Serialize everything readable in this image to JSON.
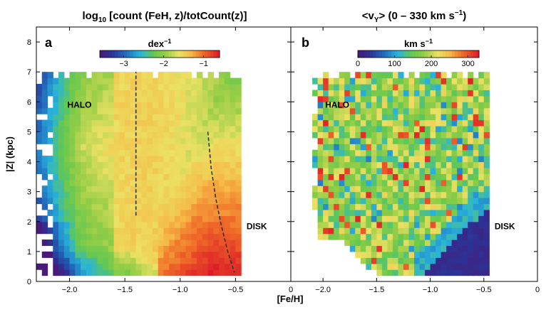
{
  "figure": {
    "xlabel": "[Fe/H]",
    "ylabel": "|Z| (kpc)"
  },
  "chart_data": [
    {
      "type": "heatmap",
      "panel_letter": "a",
      "title_prefix": "log",
      "title_sub": "10",
      "title_rest": " [count (FeH, z)/totCount(z)]",
      "xlim": [
        -2.3,
        0.0
      ],
      "ylim": [
        0,
        8.5
      ],
      "x_ticks": [
        -2.0,
        -1.5,
        -1.0,
        -0.5,
        0
      ],
      "x_tick_labels": [
        "−2.0",
        "−1.5",
        "−1.0",
        "−0.5",
        "0"
      ],
      "y_ticks": [
        0,
        1,
        2,
        3,
        4,
        5,
        6,
        7,
        8
      ],
      "y_tick_labels": [
        "0",
        "1",
        "2",
        "3",
        "4",
        "5",
        "6",
        "7",
        "8"
      ],
      "annotations": [
        {
          "text": "HALO",
          "x": -2.02,
          "y": 5.8
        },
        {
          "text": "DISK",
          "x": -0.4,
          "y": 1.75
        }
      ],
      "colorbar": {
        "label": "dex",
        "label_sup": "−1",
        "min": -3.6,
        "max": -0.6,
        "ticks": [
          -3,
          -2,
          -1
        ],
        "tick_labels": [
          "−3",
          "−2",
          "−1"
        ]
      },
      "dashed_lines": [
        {
          "x": [
            -1.4,
            -1.4
          ],
          "y": [
            2.2,
            7.0
          ]
        },
        {
          "x": [
            -0.75,
            -0.72,
            -0.68,
            -0.63,
            -0.57,
            -0.51
          ],
          "y": [
            5.0,
            3.8,
            2.8,
            1.9,
            1.0,
            0.3
          ]
        }
      ]
    },
    {
      "type": "heatmap",
      "panel_letter": "b",
      "title_main": "<v",
      "title_sub": "Y",
      "title_rest": "> (0 – 330 km s",
      "title_sup": "−1",
      "title_end": ")",
      "xlim": [
        -2.3,
        0.0
      ],
      "ylim": [
        0,
        8.5
      ],
      "x_ticks": [
        -2.0,
        -1.5,
        -1.0,
        -0.5,
        0
      ],
      "x_tick_labels": [
        "−2.0",
        "−1.5",
        "−1.0",
        "−0.5",
        "0"
      ],
      "y_ticks": [
        0,
        1,
        2,
        3,
        4,
        5,
        6,
        7,
        8
      ],
      "annotations": [
        {
          "text": "HALO",
          "x": -1.98,
          "y": 5.8
        },
        {
          "text": "DISK",
          "x": -0.4,
          "y": 1.75
        }
      ],
      "colorbar": {
        "label": "km s",
        "label_sup": "−1",
        "min": 0,
        "max": 330,
        "ticks": [
          0,
          100,
          200,
          300
        ],
        "tick_labels": [
          "0",
          "100",
          "200",
          "300"
        ]
      }
    }
  ]
}
